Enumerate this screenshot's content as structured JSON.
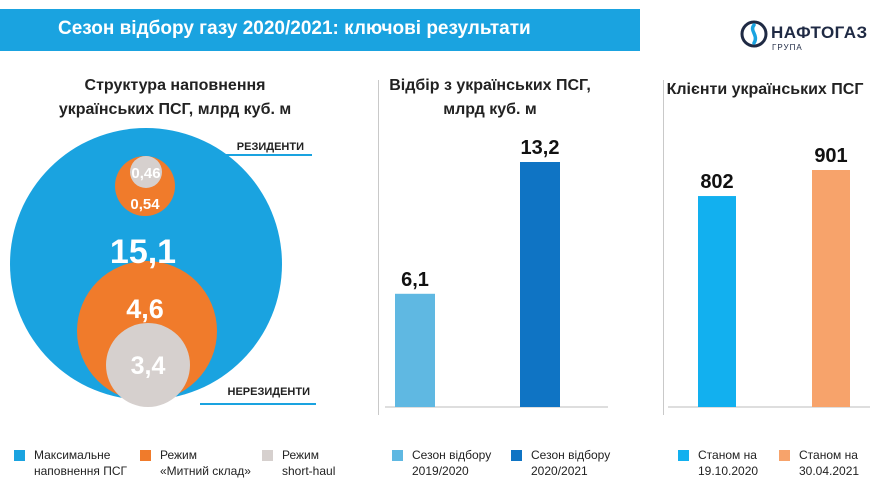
{
  "header": {
    "title": "Сезон відбору газу 2020/2021: ключові результати"
  },
  "logo": {
    "name": "НАФТОГАЗ",
    "sub": "ГРУПА"
  },
  "colors": {
    "banner": "#1aa3e0",
    "blue": "#1aa3e0",
    "orange": "#f07b2b",
    "grey": "#d6d0ce",
    "light_blue": "#5fb8e2",
    "dark_blue": "#0f74c4",
    "peach": "#f7a36b",
    "sky": "#12b0ef"
  },
  "sections": {
    "structure": {
      "title_line1": "Структура наповнення",
      "title_line2": "українських ПСГ, млрд куб. м"
    },
    "withdrawal": {
      "title_line1": "Відбір з українських ПСГ,",
      "title_line2": "млрд куб. м"
    },
    "clients": {
      "title": "Клієнти українських ПСГ"
    }
  },
  "chart_data": [
    {
      "type": "bubble",
      "title": "Структура наповнення українських ПСГ, млрд куб. м",
      "values": [
        {
          "label": "15,1",
          "value": 15.1,
          "series": "Максимальне наповнення ПСГ"
        },
        {
          "label": "0,54",
          "value": 0.54,
          "series": "Режим «Митний склад»",
          "group": "РЕЗИДЕНТИ"
        },
        {
          "label": "0,46",
          "value": 0.46,
          "series": "Режим short-haul",
          "group": "РЕЗИДЕНТИ"
        },
        {
          "label": "4,6",
          "value": 4.6,
          "series": "Режим «Митний склад»",
          "group": "НЕРЕЗИДЕНТИ"
        },
        {
          "label": "3,4",
          "value": 3.4,
          "series": "Режим short-haul",
          "group": "НЕРЕЗИДЕНТИ"
        }
      ],
      "group_labels": {
        "top": "РЕЗИДЕНТИ",
        "bottom": "НЕРЕЗИДЕНТИ"
      },
      "legend": [
        {
          "line1": "Максимальне",
          "line2": "наповнення ПСГ",
          "color": "#1aa3e0"
        },
        {
          "line1": "Режим",
          "line2": "«Митний склад»",
          "color": "#f07b2b"
        },
        {
          "line1": "Режим",
          "line2": "short-haul",
          "color": "#d6d0ce"
        }
      ]
    },
    {
      "type": "bar",
      "title": "Відбір з українських ПСГ, млрд куб. м",
      "categories": [
        "Сезон відбору 2019/2020",
        "Сезон відбору 2020/2021"
      ],
      "values": [
        6.1,
        13.2
      ],
      "value_labels": [
        "6,1",
        "13,2"
      ],
      "colors": [
        "#5fb8e2",
        "#0f74c4"
      ],
      "ylim": [
        0,
        13.2
      ],
      "legend": [
        {
          "line1": "Сезон відбору",
          "line2": "2019/2020",
          "color": "#5fb8e2"
        },
        {
          "line1": "Сезон відбору",
          "line2": "2020/2021",
          "color": "#0f74c4"
        }
      ]
    },
    {
      "type": "bar",
      "title": "Клієнти українських ПСГ",
      "categories": [
        "Станом на 19.10.2020",
        "Станом на 30.04.2021"
      ],
      "values": [
        802,
        901
      ],
      "value_labels": [
        "802",
        "901"
      ],
      "colors": [
        "#12b0ef",
        "#f7a36b"
      ],
      "ylim": [
        0,
        901
      ],
      "legend": [
        {
          "line1": "Станом на",
          "line2": "19.10.2020",
          "color": "#12b0ef"
        },
        {
          "line1": "Станом на",
          "line2": "30.04.2021",
          "color": "#f7a36b"
        }
      ]
    }
  ]
}
